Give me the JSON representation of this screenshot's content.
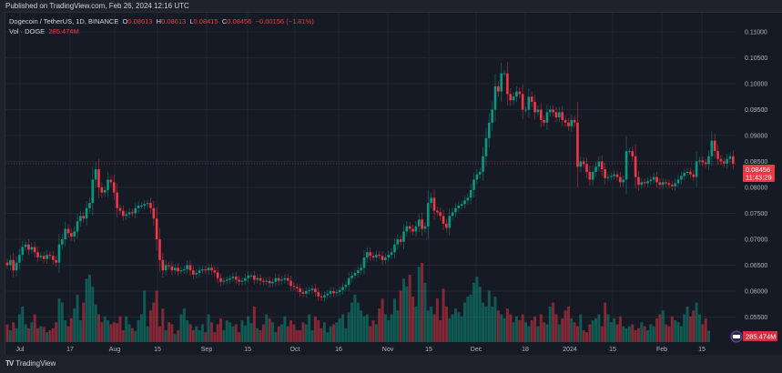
{
  "header": {
    "published": "Published on TradingView.com, Feb 26, 2024 12:16 UTC"
  },
  "legend": {
    "symbol": "Dogecoin / TetherUS, 1D, BINANCE",
    "o_label": "O",
    "o": "0.08613",
    "h_label": "H",
    "h": "0.08613",
    "l_label": "L",
    "l": "0.08415",
    "c_label": "C",
    "c": "0.08456",
    "change": "−0.00156 (−1.81%)",
    "vol_label": "Vol · DOGE",
    "vol": "285.474M"
  },
  "last_price": {
    "price": "0.08456",
    "countdown": "11:43:29",
    "value": 0.08456
  },
  "volume_badge": "285.474M",
  "footer": {
    "brand": "TradingView"
  },
  "colors": {
    "up": "#089981",
    "down": "#f23645",
    "background": "#161a25",
    "text": "#d1d4dc"
  },
  "chart_data": {
    "type": "candlestick",
    "title": "Dogecoin / TetherUS, 1D, BINANCE",
    "ylim": [
      0.0535,
      0.1115
    ],
    "y_ticks": [
      "0.11000",
      "0.10500",
      "0.10000",
      "0.09500",
      "0.09000",
      "0.08500",
      "0.08000",
      "0.07500",
      "0.07000",
      "0.06500",
      "0.06000",
      "0.05500"
    ],
    "x_ticks": [
      "Jul",
      "17",
      "Aug",
      "15",
      "Sep",
      "15",
      "Oct",
      "16",
      "Nov",
      "15",
      "Dec",
      "18",
      "2024",
      "15",
      "Feb",
      "15"
    ],
    "grid": true,
    "closes": [
      0.065,
      0.066,
      0.064,
      0.0655,
      0.067,
      0.0685,
      0.069,
      0.068,
      0.0685,
      0.0675,
      0.0665,
      0.0668,
      0.0662,
      0.067,
      0.0668,
      0.066,
      0.0655,
      0.069,
      0.07,
      0.072,
      0.0712,
      0.0705,
      0.0715,
      0.0735,
      0.0745,
      0.074,
      0.076,
      0.077,
      0.0815,
      0.0835,
      0.08,
      0.079,
      0.0795,
      0.0815,
      0.081,
      0.079,
      0.076,
      0.0755,
      0.0745,
      0.0748,
      0.0752,
      0.075,
      0.076,
      0.0765,
      0.0765,
      0.0768,
      0.077,
      0.076,
      0.074,
      0.07,
      0.066,
      0.064,
      0.065,
      0.0648,
      0.064,
      0.0645,
      0.0638,
      0.064,
      0.0642,
      0.065,
      0.064,
      0.0632,
      0.0635,
      0.064,
      0.0642,
      0.064,
      0.0645,
      0.064,
      0.0636,
      0.0625,
      0.0618,
      0.062,
      0.0622,
      0.0625,
      0.0628,
      0.0622,
      0.0618,
      0.062,
      0.0625,
      0.063,
      0.063,
      0.0622,
      0.0625,
      0.062,
      0.0618,
      0.062,
      0.0615,
      0.0618,
      0.0625,
      0.062,
      0.0622,
      0.0625,
      0.062,
      0.061,
      0.0608,
      0.0605,
      0.0598,
      0.0595,
      0.06,
      0.0602,
      0.0605,
      0.0598,
      0.059,
      0.0588,
      0.0592,
      0.0595,
      0.06,
      0.0596,
      0.0598,
      0.0602,
      0.0608,
      0.0612,
      0.0625,
      0.063,
      0.0635,
      0.064,
      0.0645,
      0.0665,
      0.0675,
      0.0668,
      0.0665,
      0.067,
      0.0668,
      0.066,
      0.0665,
      0.067,
      0.0675,
      0.069,
      0.07,
      0.0695,
      0.0715,
      0.0725,
      0.072,
      0.0715,
      0.0725,
      0.0738,
      0.072,
      0.0725,
      0.077,
      0.078,
      0.0755,
      0.0752,
      0.0745,
      0.073,
      0.0722,
      0.0745,
      0.0752,
      0.076,
      0.0765,
      0.0768,
      0.0775,
      0.078,
      0.0795,
      0.0815,
      0.0825,
      0.083,
      0.086,
      0.0895,
      0.0925,
      0.095,
      0.0995,
      0.0985,
      0.102,
      0.102,
      0.098,
      0.0968,
      0.0975,
      0.0985,
      0.098,
      0.095,
      0.095,
      0.0975,
      0.0965,
      0.0945,
      0.095,
      0.093,
      0.0925,
      0.0945,
      0.095,
      0.0945,
      0.0935,
      0.0945,
      0.093,
      0.0925,
      0.0918,
      0.093,
      0.0925,
      0.084,
      0.085,
      0.0845,
      0.083,
      0.0815,
      0.083,
      0.084,
      0.085,
      0.0835,
      0.0818,
      0.082,
      0.0822,
      0.0825,
      0.082,
      0.081,
      0.0815,
      0.087,
      0.087,
      0.086,
      0.082,
      0.0805,
      0.081,
      0.0808,
      0.0812,
      0.0815,
      0.082,
      0.081,
      0.0805,
      0.081,
      0.0808,
      0.0805,
      0.0802,
      0.0808,
      0.0815,
      0.0822,
      0.0828,
      0.083,
      0.0825,
      0.082,
      0.085,
      0.0852,
      0.0848,
      0.0845,
      0.086,
      0.089,
      0.087,
      0.0855,
      0.085,
      0.0846,
      0.0855,
      0.086,
      0.0846
    ],
    "volumes_m": [
      450,
      300,
      500,
      350,
      700,
      900,
      450,
      350,
      500,
      700,
      350,
      400,
      380,
      250,
      300,
      350,
      500,
      1100,
      1000,
      550,
      400,
      600,
      850,
      1200,
      550,
      1000,
      1600,
      1700,
      1400,
      950,
      700,
      500,
      650,
      550,
      450,
      500,
      480,
      650,
      300,
      650,
      450,
      350,
      280,
      550,
      700,
      1300,
      400,
      800,
      1000,
      1300,
      400,
      850,
      300,
      500,
      450,
      200,
      300,
      700,
      850,
      550,
      450,
      300,
      400,
      300,
      450,
      250,
      700,
      500,
      250,
      450,
      600,
      300,
      550,
      500,
      400,
      450,
      250,
      550,
      420,
      650,
      480,
      900,
      350,
      300,
      450,
      700,
      600,
      500,
      250,
      400,
      450,
      650,
      400,
      550,
      450,
      300,
      300,
      500,
      450,
      700,
      300,
      650,
      550,
      350,
      500,
      250,
      400,
      450,
      500,
      600,
      700,
      350,
      750,
      1000,
      1200,
      1000,
      800,
      650,
      700,
      400,
      550,
      450,
      850,
      1100,
      700,
      550,
      700,
      1100,
      800,
      1300,
      1600,
      1400,
      1700,
      1150,
      900,
      1900,
      2000,
      1500,
      800,
      900,
      700,
      1100,
      550,
      1350,
      900,
      600,
      700,
      850,
      750,
      650,
      1000,
      1150,
      1200,
      1500,
      1650,
      1400,
      1000,
      900,
      1300,
      900,
      1150,
      800,
      700,
      600,
      850,
      700,
      500,
      650,
      550,
      700,
      500,
      400,
      550,
      650,
      400,
      700,
      500,
      450,
      900,
      1000,
      700,
      450,
      600,
      800,
      900,
      600,
      500,
      400,
      700,
      300,
      250,
      450,
      550,
      600,
      700,
      400,
      1000,
      700,
      500,
      600,
      450,
      650,
      400,
      350,
      400,
      450,
      300,
      350,
      500,
      400,
      300,
      450,
      400,
      600,
      700,
      800,
      450,
      400,
      650,
      550,
      500,
      400,
      700,
      900,
      650,
      800,
      1000,
      700,
      450,
      600,
      285
    ]
  }
}
